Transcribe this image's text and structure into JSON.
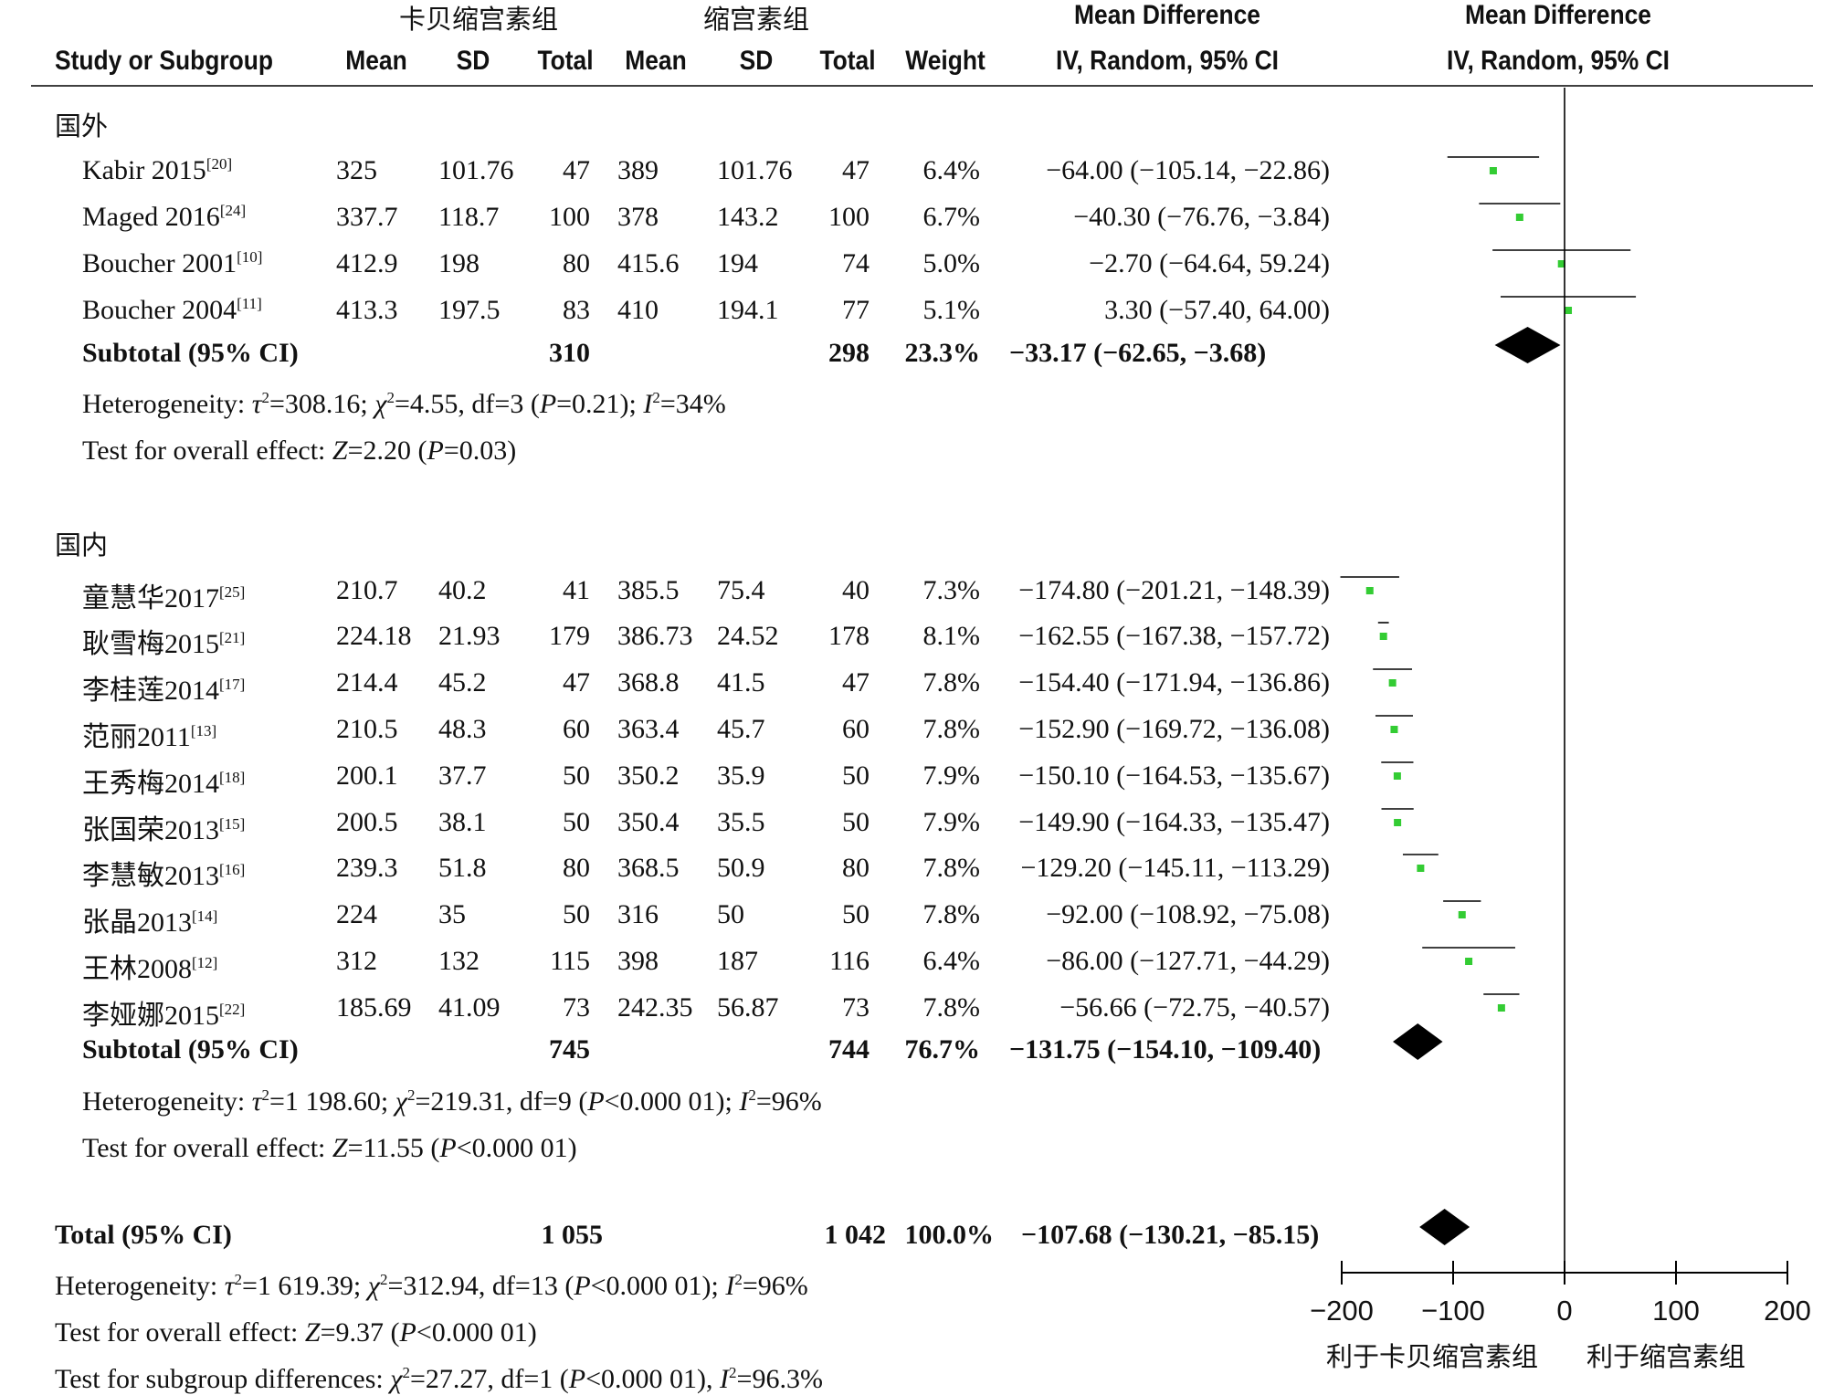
{
  "header": {
    "exp_group": "卡贝缩宫素组",
    "ctl_group": "缩宫素组",
    "md_title": "Mean Difference",
    "md_method": "IV, Random, 95% CI",
    "plot_title": "Mean Difference",
    "plot_method": "IV, Random, 95% CI",
    "cols": [
      "Study or Subgroup",
      "Mean",
      "SD",
      "Total",
      "Mean",
      "SD",
      "Total",
      "Weight"
    ]
  },
  "subgroups": [
    {
      "name": "国外",
      "studies": [
        {
          "study": "Kabir 2015",
          "ref": "[20]",
          "em": "325",
          "esd": "101.76",
          "en": "47",
          "cm": "389",
          "csd": "101.76",
          "cn": "47",
          "w": "6.4%",
          "ci": "−64.00 (−105.14, −22.86)",
          "md": -64.0,
          "lo": -105.14,
          "hi": -22.86
        },
        {
          "study": "Maged 2016",
          "ref": "[24]",
          "em": "337.7",
          "esd": "118.7",
          "en": "100",
          "cm": "378",
          "csd": "143.2",
          "cn": "100",
          "w": "6.7%",
          "ci": "−40.30 (−76.76, −3.84)",
          "md": -40.3,
          "lo": -76.76,
          "hi": -3.84
        },
        {
          "study": "Boucher 2001",
          "ref": "[10]",
          "em": "412.9",
          "esd": "198",
          "en": "80",
          "cm": "415.6",
          "csd": "194",
          "cn": "74",
          "w": "5.0%",
          "ci": "−2.70 (−64.64, 59.24)",
          "md": -2.7,
          "lo": -64.64,
          "hi": 59.24
        },
        {
          "study": "Boucher 2004",
          "ref": "[11]",
          "em": "413.3",
          "esd": "197.5",
          "en": "83",
          "cm": "410",
          "csd": "194.1",
          "cn": "77",
          "w": "5.1%",
          "ci": "3.30 (−57.40, 64.00)",
          "md": 3.3,
          "lo": -57.4,
          "hi": 64.0
        }
      ],
      "subtotal": {
        "label": "Subtotal (95% CI)",
        "en": "310",
        "cn": "298",
        "w": "23.3%",
        "ci": "−33.17 (−62.65, −3.68)",
        "md": -33.17,
        "lo": -62.65,
        "hi": -3.68
      },
      "heterogeneity": {
        "a": "Heterogeneity: ",
        "tau": "τ",
        "b": "=308.16; ",
        "chi": "χ",
        "c": "=4.55, df=3 (",
        "p": "P",
        "d": "=0.21); ",
        "i": "I",
        "e": "=34%"
      },
      "overall": {
        "a": "Test for overall effect: ",
        "z": "Z",
        "b": "=2.20 (",
        "p": "P",
        "c": "=0.03)"
      }
    },
    {
      "name": "国内",
      "studies": [
        {
          "study": "童慧华2017",
          "ref": "[25]",
          "em": "210.7",
          "esd": "40.2",
          "en": "41",
          "cm": "385.5",
          "csd": "75.4",
          "cn": "40",
          "w": "7.3%",
          "ci": "−174.80 (−201.21, −148.39)",
          "md": -174.8,
          "lo": -201.21,
          "hi": -148.39
        },
        {
          "study": "耿雪梅2015",
          "ref": "[21]",
          "em": "224.18",
          "esd": "21.93",
          "en": "179",
          "cm": "386.73",
          "csd": "24.52",
          "cn": "178",
          "w": "8.1%",
          "ci": "−162.55 (−167.38, −157.72)",
          "md": -162.55,
          "lo": -167.38,
          "hi": -157.72
        },
        {
          "study": "李桂莲2014",
          "ref": "[17]",
          "em": "214.4",
          "esd": "45.2",
          "en": "47",
          "cm": "368.8",
          "csd": "41.5",
          "cn": "47",
          "w": "7.8%",
          "ci": "−154.40 (−171.94, −136.86)",
          "md": -154.4,
          "lo": -171.94,
          "hi": -136.86
        },
        {
          "study": "范丽2011",
          "ref": "[13]",
          "em": "210.5",
          "esd": "48.3",
          "en": "60",
          "cm": "363.4",
          "csd": "45.7",
          "cn": "60",
          "w": "7.8%",
          "ci": "−152.90 (−169.72, −136.08)",
          "md": -152.9,
          "lo": -169.72,
          "hi": -136.08
        },
        {
          "study": "王秀梅2014",
          "ref": "[18]",
          "em": "200.1",
          "esd": "37.7",
          "en": "50",
          "cm": "350.2",
          "csd": "35.9",
          "cn": "50",
          "w": "7.9%",
          "ci": "−150.10 (−164.53, −135.67)",
          "md": -150.1,
          "lo": -164.53,
          "hi": -135.67
        },
        {
          "study": "张国荣2013",
          "ref": "[15]",
          "em": "200.5",
          "esd": "38.1",
          "en": "50",
          "cm": "350.4",
          "csd": "35.5",
          "cn": "50",
          "w": "7.9%",
          "ci": "−149.90 (−164.33, −135.47)",
          "md": -149.9,
          "lo": -164.33,
          "hi": -135.47
        },
        {
          "study": "李慧敏2013",
          "ref": "[16]",
          "em": "239.3",
          "esd": "51.8",
          "en": "80",
          "cm": "368.5",
          "csd": "50.9",
          "cn": "80",
          "w": "7.8%",
          "ci": "−129.20 (−145.11, −113.29)",
          "md": -129.2,
          "lo": -145.11,
          "hi": -113.29
        },
        {
          "study": "张晶2013",
          "ref": "[14]",
          "em": "224",
          "esd": "35",
          "en": "50",
          "cm": "316",
          "csd": "50",
          "cn": "50",
          "w": "7.8%",
          "ci": "−92.00 (−108.92, −75.08)",
          "md": -92.0,
          "lo": -108.92,
          "hi": -75.08
        },
        {
          "study": "王林2008",
          "ref": "[12]",
          "em": "312",
          "esd": "132",
          "en": "115",
          "cm": "398",
          "csd": "187",
          "cn": "116",
          "w": "6.4%",
          "ci": "−86.00 (−127.71, −44.29)",
          "md": -86.0,
          "lo": -127.71,
          "hi": -44.29
        },
        {
          "study": "李娅娜2015",
          "ref": "[22]",
          "em": "185.69",
          "esd": "41.09",
          "en": "73",
          "cm": "242.35",
          "csd": "56.87",
          "cn": "73",
          "w": "7.8%",
          "ci": "−56.66 (−72.75, −40.57)",
          "md": -56.66,
          "lo": -72.75,
          "hi": -40.57
        }
      ],
      "subtotal": {
        "label": "Subtotal (95% CI)",
        "en": "745",
        "cn": "744",
        "w": "76.7%",
        "ci": "−131.75 (−154.10, −109.40)",
        "md": -131.75,
        "lo": -154.1,
        "hi": -109.4
      },
      "heterogeneity": {
        "a": "Heterogeneity: ",
        "tau": "τ",
        "b": "=1 198.60; ",
        "chi": "χ",
        "c": "=219.31, df=9 (",
        "p": "P",
        "d": "<0.000 01); ",
        "i": "I",
        "e": "=96%"
      },
      "overall": {
        "a": "Test for overall effect: ",
        "z": "Z",
        "b": "=11.55 (",
        "p": "P",
        "c": "<0.000 01)"
      }
    }
  ],
  "total": {
    "label": "Total (95% CI)",
    "en": "1 055",
    "cn": "1 042",
    "w": "100.0%",
    "ci": "−107.68 (−130.21, −85.15)",
    "md": -107.68,
    "lo": -130.21,
    "hi": -85.15
  },
  "footer": {
    "heterogeneity": {
      "a": "Heterogeneity: ",
      "tau": "τ",
      "b": "=1 619.39; ",
      "chi": "χ",
      "c": "=312.94, df=13 (",
      "p": "P",
      "d": "<0.000 01); ",
      "i": "I",
      "e": "=96%"
    },
    "overall": {
      "a": "Test for overall effect: ",
      "z": "Z",
      "b": "=9.37 (",
      "p": "P",
      "c": "<0.000 01)"
    },
    "subgroup_diff": {
      "a": "Test for subgroup differences: ",
      "chi": "χ",
      "b": "=27.27, df=1 (",
      "p": "P",
      "c": "<0.000 01), ",
      "i": "I",
      "d": "=96.3%"
    }
  },
  "chart_data": {
    "type": "scatter",
    "subtype": "forest plot",
    "effect_measure": "Mean Difference, IV, Random, 95% CI",
    "xlim": [
      -200,
      200
    ],
    "x_ticks": [
      -200,
      -100,
      0,
      100,
      200
    ],
    "x_tick_labels": [
      "−200",
      "−100",
      "0",
      "100",
      "200"
    ],
    "favours_left": "利于卡贝缩宫素组",
    "favours_right": "利于缩宫素组",
    "study_marker_color": "#33cc33",
    "diamond_color": "#000000"
  }
}
